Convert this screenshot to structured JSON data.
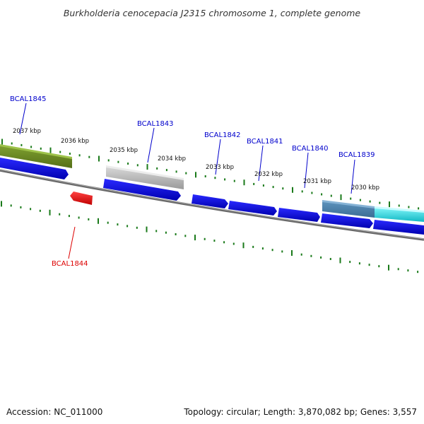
{
  "title": "Burkholderia cenocepacia J2315 chromosome 1, complete genome",
  "footer": {
    "accession": "Accession: NC_011000",
    "summary": "Topology: circular; Length: 3,870,082 bp; Genes: 3,557"
  },
  "scale_labels": [
    "2037 kbp",
    "2036 kbp",
    "2035 kbp",
    "2034 kbp",
    "2033 kbp",
    "2032 kbp",
    "2031 kbp",
    "2030 kbp"
  ],
  "gene_labels": [
    {
      "name": "BCAL1845",
      "color": "#0000cc"
    },
    {
      "name": "BCAL1843",
      "color": "#0000cc"
    },
    {
      "name": "BCAL1842",
      "color": "#0000cc"
    },
    {
      "name": "BCAL1841",
      "color": "#0000cc"
    },
    {
      "name": "BCAL1840",
      "color": "#0000cc"
    },
    {
      "name": "BCAL1839",
      "color": "#0000cc"
    },
    {
      "name": "BCAL1844",
      "color": "#dd0000"
    }
  ],
  "colors": {
    "forward_gene": "#0a0ae6",
    "reverse_gene": "#ee1111",
    "backbone": "#777777",
    "tick": "#1a7a1a",
    "feature_olive": "#6b8c23",
    "feature_gray": "#b0b0b0",
    "feature_steel": "#4a7fa8",
    "feature_cyan": "#22d8e0"
  }
}
